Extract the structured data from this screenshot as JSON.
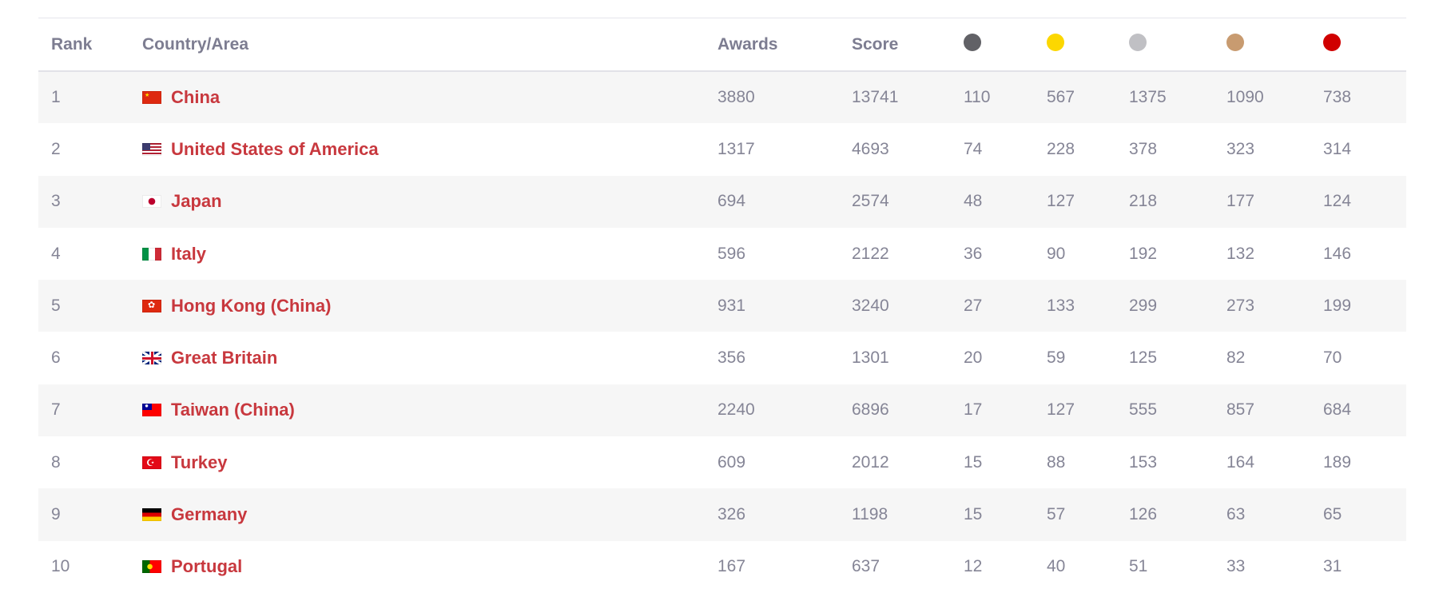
{
  "headers": {
    "rank": "Rank",
    "country": "Country/Area",
    "awards": "Awards",
    "score": "Score"
  },
  "award_levels": [
    {
      "name": "dark-grey-award-dot",
      "color": "#616166"
    },
    {
      "name": "yellow-award-dot",
      "color": "#fcd700"
    },
    {
      "name": "silver-award-dot",
      "color": "#c0c0c4"
    },
    {
      "name": "bronze-award-dot",
      "color": "#c89b70"
    },
    {
      "name": "red-award-dot",
      "color": "#d00000"
    }
  ],
  "accent_color": "#c8383e",
  "rows": [
    {
      "rank": "1",
      "country": "China",
      "flag": "china-flag-icon",
      "awards": "3880",
      "score": "13741",
      "l1": "110",
      "l2": "567",
      "l3": "1375",
      "l4": "1090",
      "l5": "738"
    },
    {
      "rank": "2",
      "country": "United States of America",
      "flag": "usa-flag-icon",
      "awards": "1317",
      "score": "4693",
      "l1": "74",
      "l2": "228",
      "l3": "378",
      "l4": "323",
      "l5": "314"
    },
    {
      "rank": "3",
      "country": "Japan",
      "flag": "japan-flag-icon",
      "awards": "694",
      "score": "2574",
      "l1": "48",
      "l2": "127",
      "l3": "218",
      "l4": "177",
      "l5": "124"
    },
    {
      "rank": "4",
      "country": "Italy",
      "flag": "italy-flag-icon",
      "awards": "596",
      "score": "2122",
      "l1": "36",
      "l2": "90",
      "l3": "192",
      "l4": "132",
      "l5": "146"
    },
    {
      "rank": "5",
      "country": "Hong Kong (China)",
      "flag": "hong-kong-flag-icon",
      "awards": "931",
      "score": "3240",
      "l1": "27",
      "l2": "133",
      "l3": "299",
      "l4": "273",
      "l5": "199"
    },
    {
      "rank": "6",
      "country": "Great Britain",
      "flag": "great-britain-flag-icon",
      "awards": "356",
      "score": "1301",
      "l1": "20",
      "l2": "59",
      "l3": "125",
      "l4": "82",
      "l5": "70"
    },
    {
      "rank": "7",
      "country": "Taiwan (China)",
      "flag": "taiwan-flag-icon",
      "awards": "2240",
      "score": "6896",
      "l1": "17",
      "l2": "127",
      "l3": "555",
      "l4": "857",
      "l5": "684"
    },
    {
      "rank": "8",
      "country": "Turkey",
      "flag": "turkey-flag-icon",
      "awards": "609",
      "score": "2012",
      "l1": "15",
      "l2": "88",
      "l3": "153",
      "l4": "164",
      "l5": "189"
    },
    {
      "rank": "9",
      "country": "Germany",
      "flag": "germany-flag-icon",
      "awards": "326",
      "score": "1198",
      "l1": "15",
      "l2": "57",
      "l3": "126",
      "l4": "63",
      "l5": "65"
    },
    {
      "rank": "10",
      "country": "Portugal",
      "flag": "portugal-flag-icon",
      "awards": "167",
      "score": "637",
      "l1": "12",
      "l2": "40",
      "l3": "51",
      "l4": "33",
      "l5": "31"
    }
  ]
}
